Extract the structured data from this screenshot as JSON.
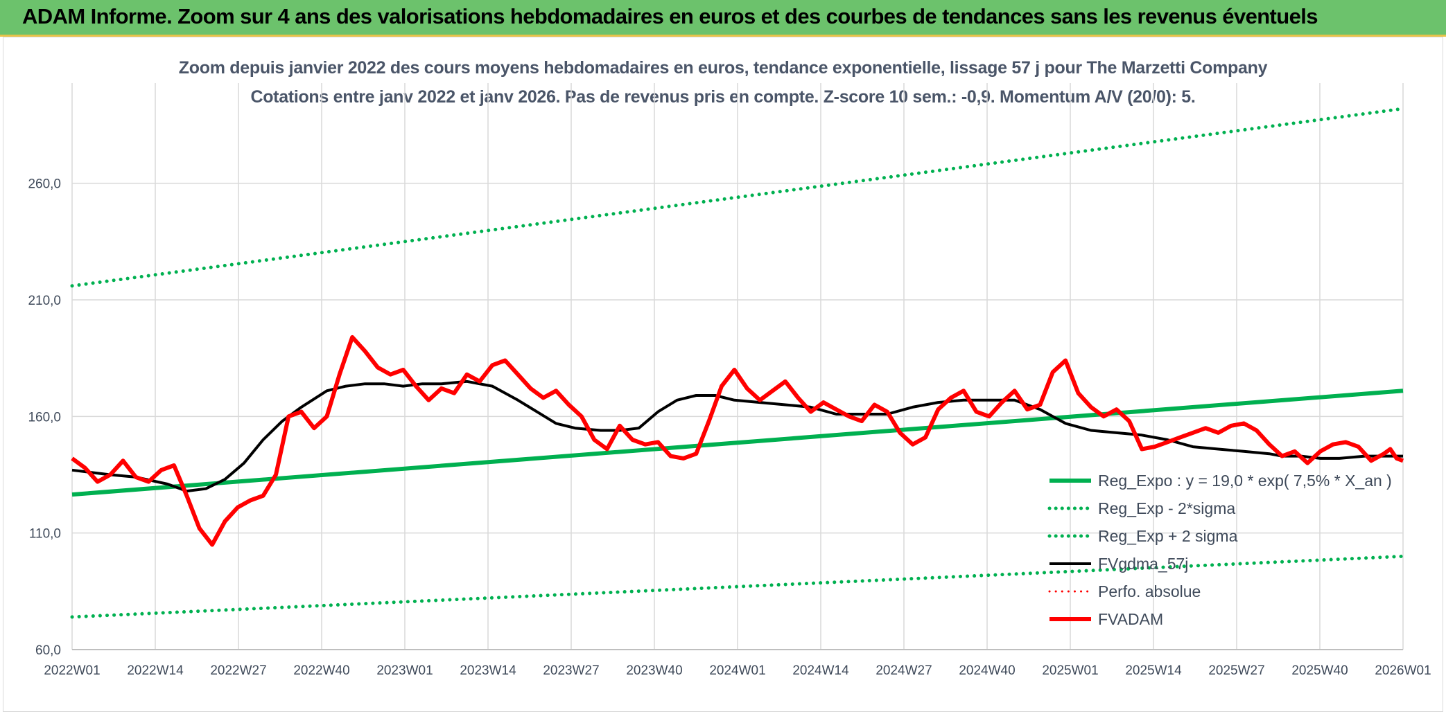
{
  "header": {
    "title": "ADAM Informe. Zoom sur 4 ans des valorisations hebdomadaires en euros et des courbes de tendances sans les revenus éventuels"
  },
  "chart_data": {
    "type": "line",
    "title": "Zoom depuis janvier 2022 des cours moyens hebdomadaires en euros, tendance exponentielle, lissage 57 j pour The Marzetti Company",
    "subtitle": "Cotations entre janv 2022 et janv 2026. Pas de revenus pris en compte. Z-score 10 sem.: -0,9. Momentum A/V (20/0): 5.",
    "xlabel": "",
    "ylabel": "",
    "x_ticks": [
      "2022W01",
      "2022W14",
      "2022W27",
      "2022W40",
      "2023W01",
      "2023W14",
      "2023W27",
      "2023W40",
      "2024W01",
      "2024W14",
      "2024W27",
      "2024W40",
      "2025W01",
      "2025W14",
      "2025W27",
      "2025W40",
      "2026W01"
    ],
    "y_ticks": [
      "60,0",
      "110,0",
      "160,0",
      "210,0",
      "260,0"
    ],
    "y_tick_values": [
      60,
      110,
      160,
      210,
      260
    ],
    "ylim": [
      60,
      300
    ],
    "xlim": [
      0,
      209
    ],
    "grid": true,
    "legend_position": "bottom-right",
    "series": [
      {
        "name": "Reg_Expo : y = 19,0 * exp( 7,5% *  X_an )",
        "color": "#00b050",
        "style": "solid",
        "width": 6,
        "x": [
          0,
          209
        ],
        "values": [
          126.5,
          171.0
        ]
      },
      {
        "name": "Reg_Exp - 2*sigma",
        "color": "#00b050",
        "style": "dotted",
        "width": 5,
        "x": [
          0,
          209
        ],
        "values": [
          74.0,
          100.0
        ]
      },
      {
        "name": "Reg_Exp + 2 sigma",
        "color": "#00b050",
        "style": "dotted",
        "width": 5,
        "x": [
          0,
          209
        ],
        "values": [
          216.0,
          292.0
        ]
      },
      {
        "name": "FVgdma_57j",
        "color": "#000000",
        "style": "solid",
        "width": 4,
        "x": [
          0,
          6,
          10,
          15,
          18,
          21,
          24,
          27,
          30,
          33,
          36,
          40,
          43,
          46,
          49,
          52,
          55,
          58,
          62,
          66,
          70,
          73,
          76,
          79,
          83,
          86,
          89,
          92,
          95,
          98,
          101,
          104,
          108,
          112,
          116,
          120,
          124,
          128,
          132,
          136,
          140,
          144,
          148,
          152,
          156,
          160,
          164,
          168,
          172,
          176,
          180,
          184,
          188,
          190,
          193,
          196,
          199,
          203,
          207,
          209
        ],
        "values": [
          137,
          135,
          134,
          131,
          128,
          129,
          133,
          140,
          150,
          158,
          164,
          171,
          173,
          174,
          174,
          173,
          174,
          174,
          175,
          173,
          167,
          162,
          157,
          155,
          154,
          154,
          155,
          162,
          167,
          169,
          169,
          167,
          166,
          165,
          164,
          161,
          161,
          161,
          164,
          166,
          167,
          167,
          167,
          163,
          157,
          154,
          153,
          152,
          150,
          147,
          146,
          145,
          144,
          143,
          143,
          142,
          142,
          143,
          143,
          143
        ]
      },
      {
        "name": "Perfo. absolue",
        "color": "#ff0000",
        "style": "dotted",
        "width": 3,
        "x": [],
        "values": []
      },
      {
        "name": "FVADAM",
        "color": "#ff0000",
        "style": "solid",
        "width": 6,
        "x": [
          0,
          2,
          4,
          6,
          8,
          10,
          12,
          14,
          16,
          18,
          20,
          22,
          24,
          26,
          28,
          30,
          32,
          34,
          36,
          38,
          40,
          42,
          44,
          46,
          48,
          50,
          52,
          54,
          56,
          58,
          60,
          62,
          64,
          66,
          68,
          70,
          72,
          74,
          76,
          78,
          80,
          82,
          84,
          86,
          88,
          90,
          92,
          94,
          96,
          98,
          100,
          102,
          104,
          106,
          108,
          110,
          112,
          114,
          116,
          118,
          120,
          122,
          124,
          126,
          128,
          130,
          132,
          134,
          136,
          138,
          140,
          142,
          144,
          146,
          148,
          150,
          152,
          154,
          156,
          158,
          160,
          162,
          164,
          166,
          168,
          170,
          172,
          174,
          176,
          178,
          180,
          182,
          184,
          186,
          188,
          190,
          192,
          194,
          196,
          198,
          200,
          202,
          204,
          206,
          207,
          208,
          209
        ],
        "values": [
          142,
          138,
          132,
          135,
          141,
          134,
          132,
          137,
          139,
          126,
          112,
          105,
          115,
          121,
          124,
          126,
          135,
          160,
          162,
          155,
          160,
          178,
          194,
          188,
          181,
          178,
          180,
          173,
          167,
          172,
          170,
          178,
          175,
          182,
          184,
          178,
          172,
          168,
          171,
          165,
          160,
          150,
          146,
          156,
          150,
          148,
          149,
          143,
          142,
          144,
          158,
          173,
          180,
          172,
          167,
          171,
          175,
          168,
          162,
          166,
          163,
          160,
          158,
          165,
          162,
          153,
          148,
          151,
          163,
          168,
          171,
          162,
          160,
          166,
          171,
          163,
          165,
          179,
          184,
          170,
          164,
          160,
          163,
          158,
          146,
          147,
          149,
          151,
          153,
          155,
          153,
          156,
          157,
          154,
          148,
          143,
          145,
          140,
          145,
          148,
          149,
          147,
          141,
          144,
          146,
          142,
          141
        ]
      }
    ]
  }
}
